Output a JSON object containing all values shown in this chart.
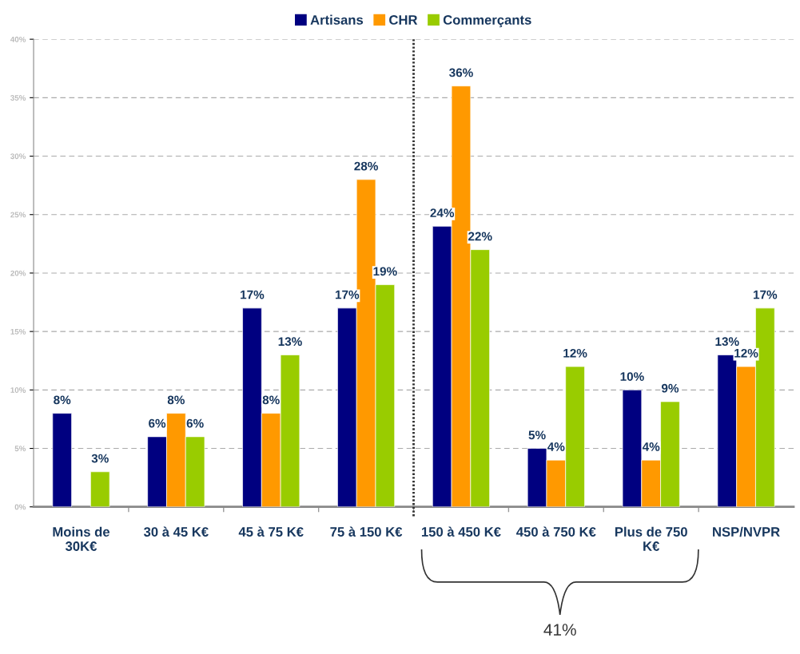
{
  "chart_data": {
    "type": "bar",
    "categories": [
      "Moins de\n30K€",
      "30 à 45 K€",
      "45 à 75 K€",
      "75 à 150 K€",
      "150 à 450 K€",
      "450 à 750 K€",
      "Plus de 750\nK€",
      "NSP/NVPR"
    ],
    "series": [
      {
        "name": "Artisans",
        "color": "#000080",
        "values": [
          8,
          6,
          17,
          17,
          24,
          5,
          10,
          13
        ],
        "value_labels": [
          "8%",
          "6%",
          "17%",
          "17%",
          "24%",
          "5%",
          "10%",
          "13%"
        ]
      },
      {
        "name": "CHR",
        "color": "#ff9900",
        "values": [
          null,
          8,
          8,
          28,
          36,
          4,
          4,
          12
        ],
        "value_labels": [
          null,
          "8%",
          "8%",
          "28%",
          "36%",
          "4%",
          "4%",
          "12%"
        ]
      },
      {
        "name": "Commerçants",
        "color": "#99cc00",
        "values": [
          3,
          6,
          13,
          19,
          22,
          12,
          9,
          17
        ],
        "value_labels": [
          "3%",
          "6%",
          "13%",
          "19%",
          "22%",
          "12%",
          "9%",
          "17%"
        ]
      }
    ],
    "ylim": [
      0,
      40
    ],
    "yticks": [
      {
        "value": 0,
        "label": "0%"
      },
      {
        "value": 5,
        "label": "5%"
      },
      {
        "value": 10,
        "label": "10%"
      },
      {
        "value": 15,
        "label": "15%"
      },
      {
        "value": 20,
        "label": "20%"
      },
      {
        "value": 25,
        "label": "25%"
      },
      {
        "value": 30,
        "label": "30%"
      },
      {
        "value": 35,
        "label": "35%"
      },
      {
        "value": 40,
        "label": "40%"
      }
    ],
    "grid": "y",
    "legend": "top",
    "annotations": [
      "41%"
    ]
  }
}
